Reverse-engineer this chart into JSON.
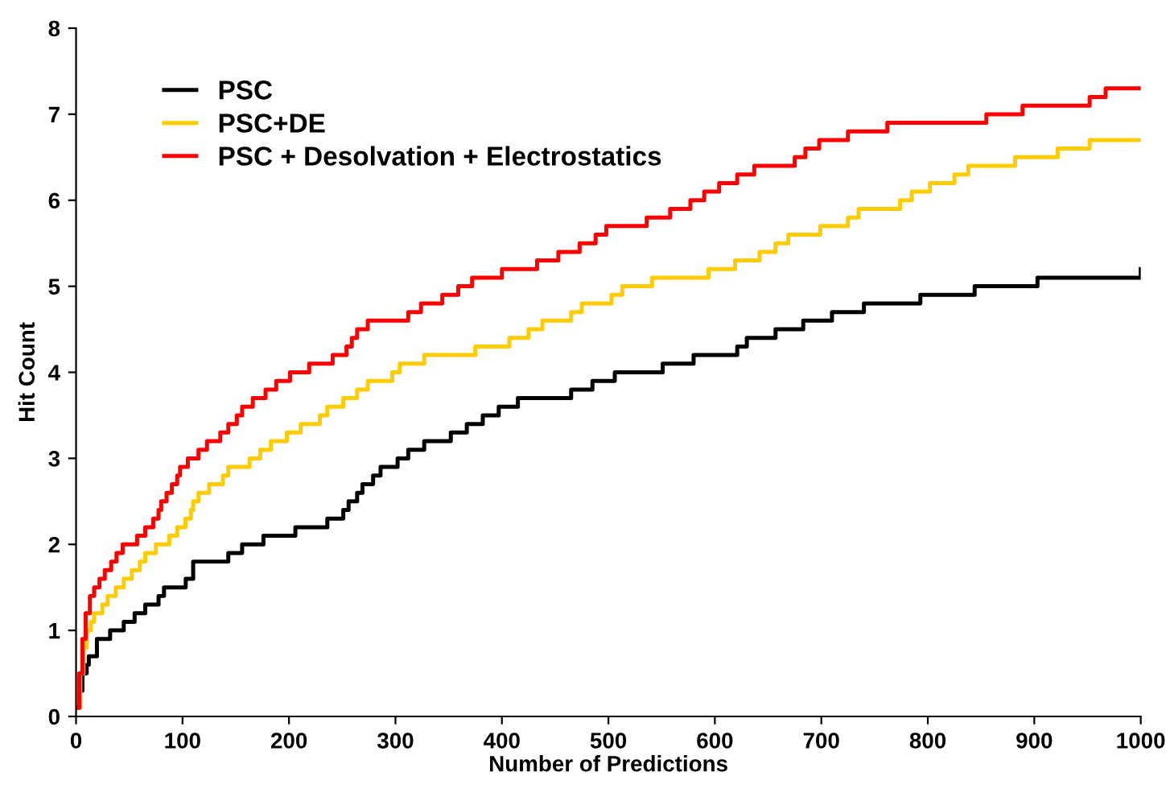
{
  "chart_data": {
    "type": "step",
    "xlabel": "Number of Predictions",
    "ylabel": "Hit Count",
    "xlim": [
      0,
      1000
    ],
    "ylim": [
      0,
      8
    ],
    "xticks": [
      0,
      100,
      200,
      300,
      400,
      500,
      600,
      700,
      800,
      900,
      1000
    ],
    "yticks": [
      0,
      1,
      2,
      3,
      4,
      5,
      6,
      7,
      8
    ],
    "legend": "top left",
    "grid": false,
    "series": [
      {
        "name": "PSC",
        "color": "#000000",
        "x": [
          0,
          3,
          6,
          10,
          12,
          19.6,
          32,
          44.8,
          55,
          65,
          77.5,
          82.6,
          103,
          110,
          143,
          156,
          176,
          206,
          236,
          251,
          256,
          264,
          269,
          279,
          286,
          302,
          312,
          327,
          352,
          367,
          382,
          397,
          415,
          465,
          485,
          506,
          551,
          580,
          621,
          630,
          657,
          683,
          710,
          740,
          793,
          844,
          903,
          938,
          1000
        ],
        "values": [
          0.1,
          0.3,
          0.5,
          0.6,
          0.7,
          0.9,
          1.0,
          1.1,
          1.2,
          1.3,
          1.4,
          1.5,
          1.6,
          1.8,
          1.9,
          2.0,
          2.1,
          2.2,
          2.3,
          2.4,
          2.5,
          2.6,
          2.7,
          2.8,
          2.9,
          3.0,
          3.1,
          3.2,
          3.3,
          3.4,
          3.5,
          3.6,
          3.7,
          3.8,
          3.9,
          4.0,
          4.1,
          4.2,
          4.3,
          4.4,
          4.5,
          4.6,
          4.7,
          4.8,
          4.9,
          5.0,
          5.1,
          5.1,
          5.2
        ]
      },
      {
        "name": "PSC+DE",
        "color": "#ffcc00",
        "x": [
          0,
          4,
          7,
          10,
          14,
          17,
          24.7,
          29.7,
          37.3,
          44.8,
          52.4,
          59.9,
          65,
          75,
          87.6,
          95,
          102.7,
          107.8,
          110,
          115,
          125,
          138,
          143,
          163,
          173,
          183,
          198,
          211,
          229,
          236,
          251,
          264,
          274,
          297,
          304,
          327,
          375,
          407,
          425,
          438,
          465,
          475,
          503,
          513,
          541,
          594,
          619,
          642,
          657,
          669,
          699,
          725,
          735,
          774,
          785,
          802,
          825,
          838,
          882,
          922,
          952,
          1000
        ],
        "values": [
          0.1,
          0.5,
          0.8,
          1.0,
          1.1,
          1.2,
          1.3,
          1.4,
          1.5,
          1.6,
          1.7,
          1.8,
          1.9,
          2.0,
          2.1,
          2.2,
          2.3,
          2.4,
          2.5,
          2.6,
          2.7,
          2.8,
          2.9,
          3.0,
          3.1,
          3.2,
          3.3,
          3.4,
          3.5,
          3.6,
          3.7,
          3.8,
          3.9,
          4.0,
          4.1,
          4.2,
          4.3,
          4.4,
          4.5,
          4.6,
          4.7,
          4.8,
          4.9,
          5.0,
          5.1,
          5.2,
          5.3,
          5.4,
          5.5,
          5.6,
          5.7,
          5.8,
          5.9,
          6.0,
          6.1,
          6.2,
          6.3,
          6.4,
          6.5,
          6.6,
          6.7,
          6.7
        ]
      },
      {
        "name": "PSC + Desolvation + Electrostatics",
        "color": "#ff0000",
        "x": [
          0,
          3,
          6,
          9,
          13,
          17,
          22,
          27,
          33,
          38,
          43.8,
          57.4,
          65,
          72.5,
          77.5,
          80,
          85,
          90,
          95,
          97.7,
          105,
          115,
          123,
          135.5,
          143,
          151,
          156,
          166,
          178,
          188,
          201,
          219,
          241,
          254,
          259,
          264,
          274,
          312,
          324,
          344,
          359,
          372,
          400,
          433,
          453,
          473,
          488,
          498,
          536,
          558,
          577,
          590,
          604,
          621,
          637,
          675,
          685,
          698,
          725,
          762,
          855,
          889,
          952,
          967,
          1000
        ],
        "values": [
          0.1,
          0.5,
          0.9,
          1.2,
          1.4,
          1.5,
          1.6,
          1.7,
          1.8,
          1.9,
          2.0,
          2.1,
          2.2,
          2.3,
          2.4,
          2.5,
          2.6,
          2.7,
          2.8,
          2.9,
          3.0,
          3.1,
          3.2,
          3.3,
          3.4,
          3.5,
          3.6,
          3.7,
          3.8,
          3.9,
          4.0,
          4.1,
          4.2,
          4.3,
          4.4,
          4.5,
          4.6,
          4.7,
          4.8,
          4.9,
          5.0,
          5.1,
          5.2,
          5.3,
          5.4,
          5.5,
          5.6,
          5.7,
          5.8,
          5.9,
          6.0,
          6.1,
          6.2,
          6.3,
          6.4,
          6.5,
          6.6,
          6.7,
          6.8,
          6.9,
          7.0,
          7.1,
          7.2,
          7.3,
          7.3
        ]
      }
    ]
  }
}
